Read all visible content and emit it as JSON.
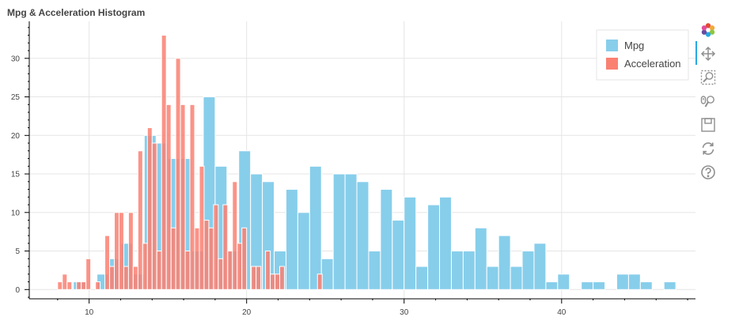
{
  "chart_data": {
    "type": "bar",
    "title": "Mpg & Acceleration Histogram",
    "xlim": [
      6.2,
      48.5
    ],
    "ylim": [
      -1.2,
      34.8
    ],
    "xticks": [
      10,
      20,
      30,
      40
    ],
    "yticks": [
      0,
      5,
      10,
      15,
      20,
      25,
      30
    ],
    "grid": true,
    "legend_position": "top-right",
    "series": [
      {
        "name": "Mpg",
        "color": "#87ceeb",
        "bin_width": 0.75,
        "bins": [
          [
            9.0,
            1
          ],
          [
            9.75,
            0
          ],
          [
            10.5,
            2
          ],
          [
            11.25,
            4
          ],
          [
            12.0,
            6
          ],
          [
            12.75,
            2
          ],
          [
            13.5,
            20
          ],
          [
            14.25,
            19
          ],
          [
            15.0,
            17
          ],
          [
            15.75,
            17
          ],
          [
            16.5,
            5
          ],
          [
            17.25,
            25
          ],
          [
            18.0,
            16
          ],
          [
            18.75,
            5
          ],
          [
            19.5,
            18
          ],
          [
            20.25,
            15
          ],
          [
            21.0,
            14
          ],
          [
            21.75,
            5
          ],
          [
            22.5,
            13
          ],
          [
            23.25,
            10
          ],
          [
            24.0,
            16
          ],
          [
            24.75,
            4
          ],
          [
            25.5,
            15
          ],
          [
            26.25,
            15
          ],
          [
            27.0,
            14
          ],
          [
            27.75,
            5
          ],
          [
            28.5,
            13
          ],
          [
            29.25,
            9
          ],
          [
            30.0,
            12
          ],
          [
            30.75,
            3
          ],
          [
            31.5,
            11
          ],
          [
            32.25,
            12
          ],
          [
            33.0,
            5
          ],
          [
            33.75,
            5
          ],
          [
            34.5,
            8
          ],
          [
            35.25,
            3
          ],
          [
            36.0,
            7
          ],
          [
            36.75,
            3
          ],
          [
            37.5,
            5
          ],
          [
            38.25,
            6
          ],
          [
            39.0,
            1
          ],
          [
            39.75,
            2
          ],
          [
            40.5,
            0
          ],
          [
            41.25,
            1
          ],
          [
            42.0,
            1
          ],
          [
            42.75,
            0
          ],
          [
            43.5,
            2
          ],
          [
            44.25,
            2
          ],
          [
            45.0,
            1
          ],
          [
            45.75,
            0
          ],
          [
            46.5,
            1
          ]
        ]
      },
      {
        "name": "Acceleration",
        "color": "#fa8072",
        "bin_width": 0.3,
        "bins": [
          [
            8.0,
            1
          ],
          [
            8.3,
            2
          ],
          [
            8.6,
            1
          ],
          [
            8.9,
            0
          ],
          [
            9.2,
            1
          ],
          [
            9.5,
            1
          ],
          [
            9.8,
            4
          ],
          [
            10.1,
            0
          ],
          [
            10.4,
            1
          ],
          [
            10.7,
            0
          ],
          [
            11.0,
            7
          ],
          [
            11.3,
            3
          ],
          [
            11.6,
            10
          ],
          [
            11.9,
            10
          ],
          [
            12.2,
            3
          ],
          [
            12.5,
            10
          ],
          [
            12.8,
            3
          ],
          [
            13.1,
            18
          ],
          [
            13.4,
            6
          ],
          [
            13.7,
            21
          ],
          [
            14.0,
            19
          ],
          [
            14.3,
            5
          ],
          [
            14.6,
            33
          ],
          [
            14.9,
            24
          ],
          [
            15.2,
            8
          ],
          [
            15.5,
            30
          ],
          [
            15.8,
            24
          ],
          [
            16.1,
            5
          ],
          [
            16.4,
            24
          ],
          [
            16.7,
            8
          ],
          [
            17.0,
            16
          ],
          [
            17.3,
            9
          ],
          [
            17.6,
            8
          ],
          [
            17.9,
            11
          ],
          [
            18.2,
            4
          ],
          [
            18.5,
            11
          ],
          [
            18.8,
            5
          ],
          [
            19.1,
            14
          ],
          [
            19.4,
            6
          ],
          [
            19.7,
            8
          ],
          [
            20.0,
            0
          ],
          [
            20.3,
            3
          ],
          [
            20.6,
            3
          ],
          [
            20.9,
            0
          ],
          [
            21.2,
            5
          ],
          [
            21.5,
            2
          ],
          [
            21.8,
            2
          ],
          [
            22.1,
            3
          ],
          [
            22.4,
            0
          ],
          [
            22.7,
            0
          ],
          [
            23.0,
            0
          ],
          [
            23.3,
            0
          ],
          [
            23.6,
            0
          ],
          [
            23.9,
            0
          ],
          [
            24.2,
            0
          ],
          [
            24.5,
            2
          ]
        ]
      }
    ]
  },
  "toolbar": {
    "tools": [
      "bokeh-logo-icon",
      "pan-icon",
      "box-zoom-icon",
      "wheel-zoom-icon",
      "save-icon",
      "reset-icon",
      "help-icon"
    ],
    "active_tool": "pan-icon",
    "accent_color": "#26aae1"
  }
}
